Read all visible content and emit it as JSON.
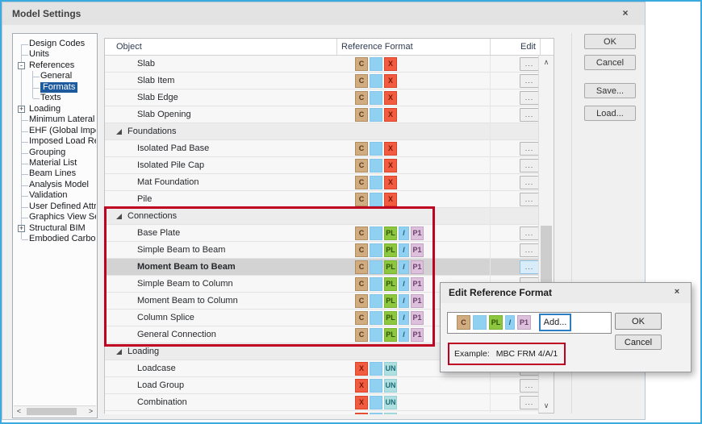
{
  "window": {
    "title": "Model Settings",
    "close_glyph": "×"
  },
  "main_buttons": {
    "ok": "OK",
    "cancel": "Cancel",
    "save": "Save...",
    "load": "Load..."
  },
  "tree": {
    "items": [
      {
        "label": "Design Codes",
        "level": 0
      },
      {
        "label": "Units",
        "level": 0
      },
      {
        "label": "References",
        "level": 0,
        "box": "minus"
      },
      {
        "label": "General",
        "level": 1
      },
      {
        "label": "Formats",
        "level": 1,
        "selected": true
      },
      {
        "label": "Texts",
        "level": 1
      },
      {
        "label": "Loading",
        "level": 0,
        "box": "plus"
      },
      {
        "label": "Minimum Lateral Lo",
        "level": 0
      },
      {
        "label": "EHF (Global Imperfe",
        "level": 0
      },
      {
        "label": "Imposed Load Redu",
        "level": 0
      },
      {
        "label": "Grouping",
        "level": 0
      },
      {
        "label": "Material List",
        "level": 0
      },
      {
        "label": "Beam Lines",
        "level": 0
      },
      {
        "label": "Analysis Model",
        "level": 0
      },
      {
        "label": "Validation",
        "level": 0
      },
      {
        "label": "User Defined Attribu",
        "level": 0
      },
      {
        "label": "Graphics View Settin",
        "level": 0
      },
      {
        "label": "Structural BIM",
        "level": 0,
        "box": "plus"
      },
      {
        "label": "Embodied Carbon",
        "level": 0
      }
    ]
  },
  "table": {
    "headers": {
      "object": "Object",
      "ref": "Reference Format",
      "edit": "Edit"
    },
    "rows": [
      {
        "type": "item",
        "label": "Slab",
        "set": "cx"
      },
      {
        "type": "item",
        "label": "Slab Item",
        "set": "cx"
      },
      {
        "type": "item",
        "label": "Slab Edge",
        "set": "cx"
      },
      {
        "type": "item",
        "label": "Slab Opening",
        "set": "cx"
      },
      {
        "type": "group",
        "label": "Foundations"
      },
      {
        "type": "item",
        "label": "Isolated Pad Base",
        "set": "cx"
      },
      {
        "type": "item",
        "label": "Isolated Pile Cap",
        "set": "cx"
      },
      {
        "type": "item",
        "label": "Mat Foundation",
        "set": "cx"
      },
      {
        "type": "item",
        "label": "Pile",
        "set": "cx"
      },
      {
        "type": "group",
        "label": "Connections"
      },
      {
        "type": "item",
        "label": "Base Plate",
        "set": "conn"
      },
      {
        "type": "item",
        "label": "Simple Beam to Beam",
        "set": "conn"
      },
      {
        "type": "item",
        "label": "Moment Beam to Beam",
        "set": "conn",
        "selected": true
      },
      {
        "type": "item",
        "label": "Simple Beam to Column",
        "set": "conn"
      },
      {
        "type": "item",
        "label": "Moment Beam to Column",
        "set": "conn"
      },
      {
        "type": "item",
        "label": "Column Splice",
        "set": "conn"
      },
      {
        "type": "item",
        "label": "General Connection",
        "set": "conn"
      },
      {
        "type": "group",
        "label": "Loading"
      },
      {
        "type": "item",
        "label": "Loadcase",
        "set": "load"
      },
      {
        "type": "item",
        "label": "Load Group",
        "set": "load"
      },
      {
        "type": "item",
        "label": "Combination",
        "set": "load"
      },
      {
        "type": "item",
        "label": "",
        "set": "load",
        "partial": true
      }
    ]
  },
  "badges": {
    "sets": {
      "cx": [
        "c",
        "blank",
        "x"
      ],
      "conn": [
        "c",
        "blank",
        "pl",
        "slash",
        "p1"
      ],
      "load": [
        "x",
        "blank",
        "un"
      ]
    },
    "defs": {
      "c": {
        "text": "C",
        "bg": "#d1ac80",
        "border": "#b08d5e",
        "fg": "#53381a"
      },
      "blank": {
        "text": "",
        "bg": "#90d0f0",
        "border": "#85c6e8",
        "fg": "#2b5b80"
      },
      "x": {
        "text": "X",
        "bg": "#f15b3f",
        "border": "#d8432a",
        "fg": "#7c1a05"
      },
      "pl": {
        "text": "PL",
        "bg": "#8dc63f",
        "border": "#79b230",
        "fg": "#2f5500"
      },
      "slash": {
        "text": "/",
        "bg": "#90d0f0",
        "border": "#85c6e8",
        "fg": "#1f4e79"
      },
      "p1": {
        "text": "P1",
        "bg": "#dcc0dc",
        "border": "#c5a3c5",
        "fg": "#6b3f6b"
      },
      "un": {
        "text": "UN",
        "bg": "#aee0e2",
        "border": "#97d0d4",
        "fg": "#1e6b74"
      }
    }
  },
  "edit_dialog": {
    "title": "Edit Reference Format",
    "close_glyph": "×",
    "format": [
      "c",
      "blank",
      "pl",
      "slash",
      "p1"
    ],
    "add": "Add...",
    "ok": "OK",
    "cancel": "Cancel",
    "example_label": "Example:",
    "example_value": "MBC FRM 4/A/1"
  },
  "icons": {
    "scroll_up": "∧",
    "scroll_down": "∨",
    "scroll_left": "<",
    "scroll_right": ">",
    "ellipsis": "...",
    "tree_collapse": "-",
    "tree_expand": "+"
  },
  "colors": {
    "frame_blue": "#3baadf",
    "annotation_red": "#c00020",
    "tree_selection": "#1d5a9e",
    "row_selected": "#d3d3d3"
  }
}
